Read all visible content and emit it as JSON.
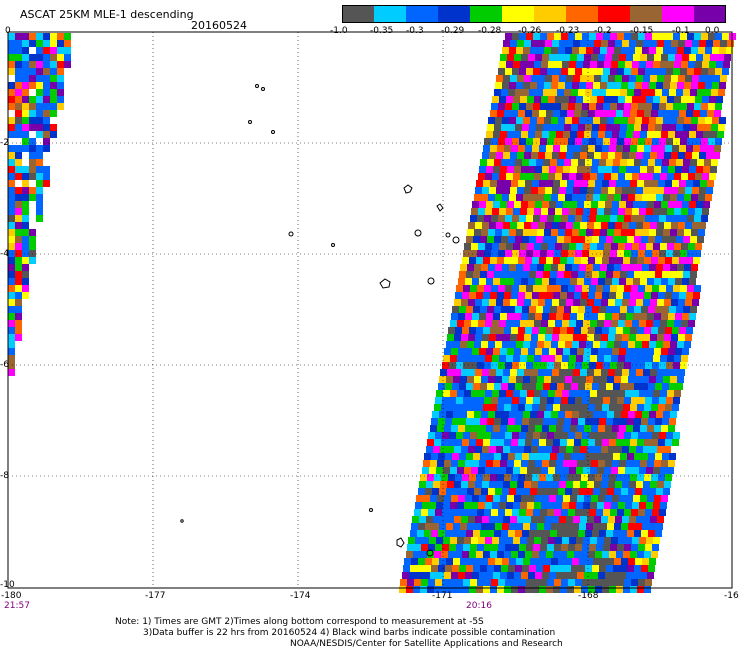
{
  "header": {
    "title": "ASCAT 25KM MLE-1 descending",
    "date": "20160524"
  },
  "colorbar": {
    "colors": [
      "#555555",
      "#00ccff",
      "#0066ff",
      "#0033cc",
      "#00cc00",
      "#ffff00",
      "#ffcc00",
      "#ff6600",
      "#ff0000",
      "#996633",
      "#ff00ff",
      "#7700aa"
    ],
    "labels": [
      "-1.0",
      "-0.35",
      "-0.3",
      "-0.29",
      "-0.28",
      "-0.26",
      "-0.23",
      "-0.2",
      "-0.15",
      "-0.1",
      "0.0"
    ]
  },
  "axes": {
    "x_ticks": [
      "-180",
      "-177",
      "-174",
      "-171",
      "-168",
      "-16"
    ],
    "y_ticks": [
      "0",
      "-2",
      "-4",
      "-6",
      "-8",
      "-10"
    ],
    "times": {
      "left": "21:57",
      "right": "20:16"
    }
  },
  "notes": {
    "line1": "Note: 1) Times are GMT 2)Times along bottom correspond to measurement at -5S",
    "line2": "3)Data buffer is 22 hrs from 20160524 4) Black wind barbs indicate possible contamination",
    "line3": "NOAA/NESDIS/Center for Satellite Applications and Research"
  }
}
